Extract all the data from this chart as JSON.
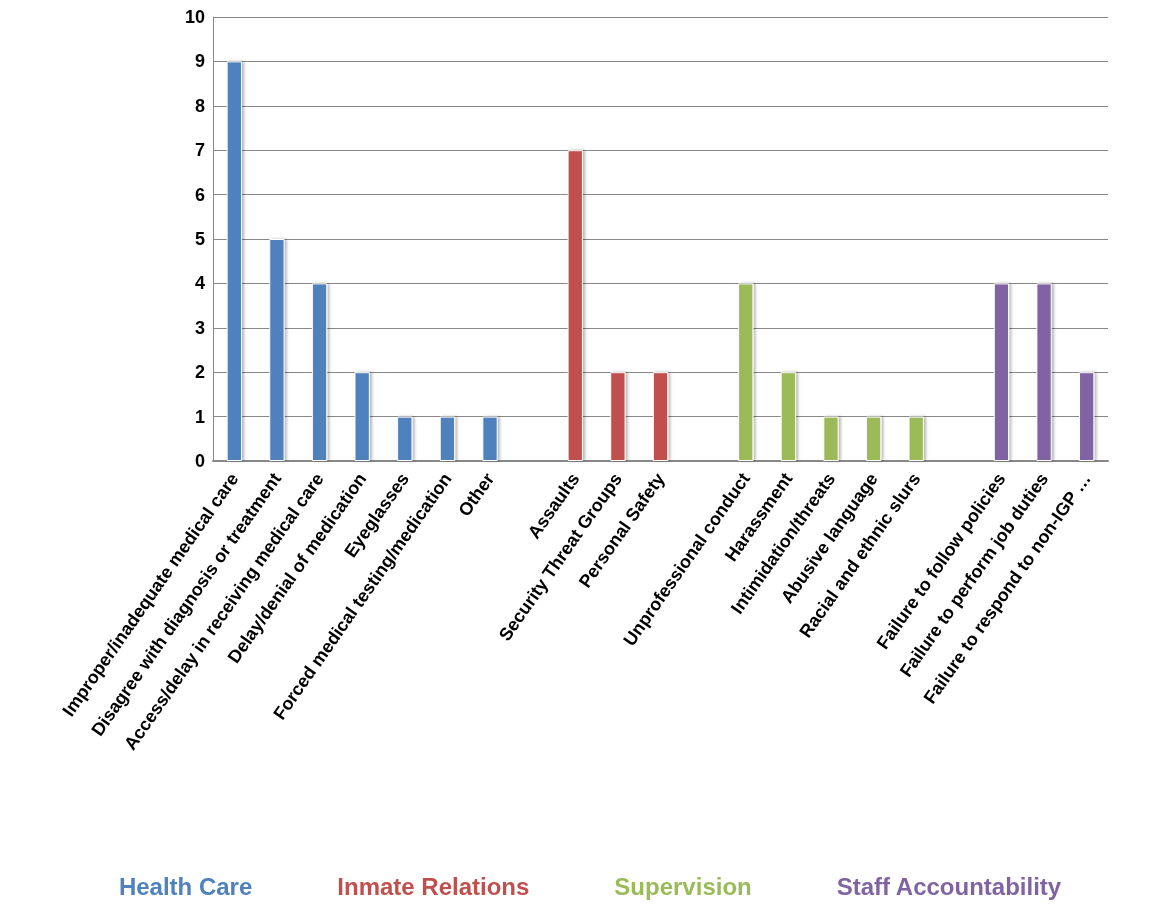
{
  "chart_data": {
    "type": "bar",
    "categories": [
      "Improper/inadequate medical care",
      "Disagree with diagnosis or treatment",
      "Access/delay in receiving medical care",
      "Delay/denial of medication",
      "Eyeglasses",
      "Forced medical testing/medication",
      "Other",
      null,
      "Assaults",
      "Security Threat Groups",
      "Personal Safety",
      null,
      "Unprofessional conduct",
      "Harassment",
      "Intimidation/threats",
      "Abusive language",
      "Racial and ethnic slurs",
      null,
      "Failure to follow policies",
      "Failure to perform job duties",
      "Failure to respond to non-IGP …"
    ],
    "series": [
      {
        "name": "Health Care",
        "color": "#4f81bd",
        "values": [
          9,
          5,
          4,
          2,
          1,
          1,
          1,
          null,
          null,
          null,
          null,
          null,
          null,
          null,
          null,
          null,
          null,
          null,
          null,
          null,
          null
        ]
      },
      {
        "name": "Inmate Relations",
        "color": "#c0504d",
        "values": [
          null,
          null,
          null,
          null,
          null,
          null,
          null,
          null,
          7,
          2,
          2,
          null,
          null,
          null,
          null,
          null,
          null,
          null,
          null,
          null,
          null
        ]
      },
      {
        "name": "Supervision",
        "color": "#9bbb59",
        "values": [
          null,
          null,
          null,
          null,
          null,
          null,
          null,
          null,
          null,
          null,
          null,
          null,
          4,
          2,
          1,
          1,
          1,
          null,
          null,
          null,
          null
        ]
      },
      {
        "name": "Staff Accountability",
        "color": "#8064a2",
        "values": [
          null,
          null,
          null,
          null,
          null,
          null,
          null,
          null,
          null,
          null,
          null,
          null,
          null,
          null,
          null,
          null,
          null,
          null,
          4,
          4,
          2
        ]
      }
    ],
    "ylim": [
      0,
      10
    ],
    "yticks": [
      0,
      1,
      2,
      3,
      4,
      5,
      6,
      7,
      8,
      9,
      10
    ],
    "grid": "y",
    "legend": "bottom"
  }
}
